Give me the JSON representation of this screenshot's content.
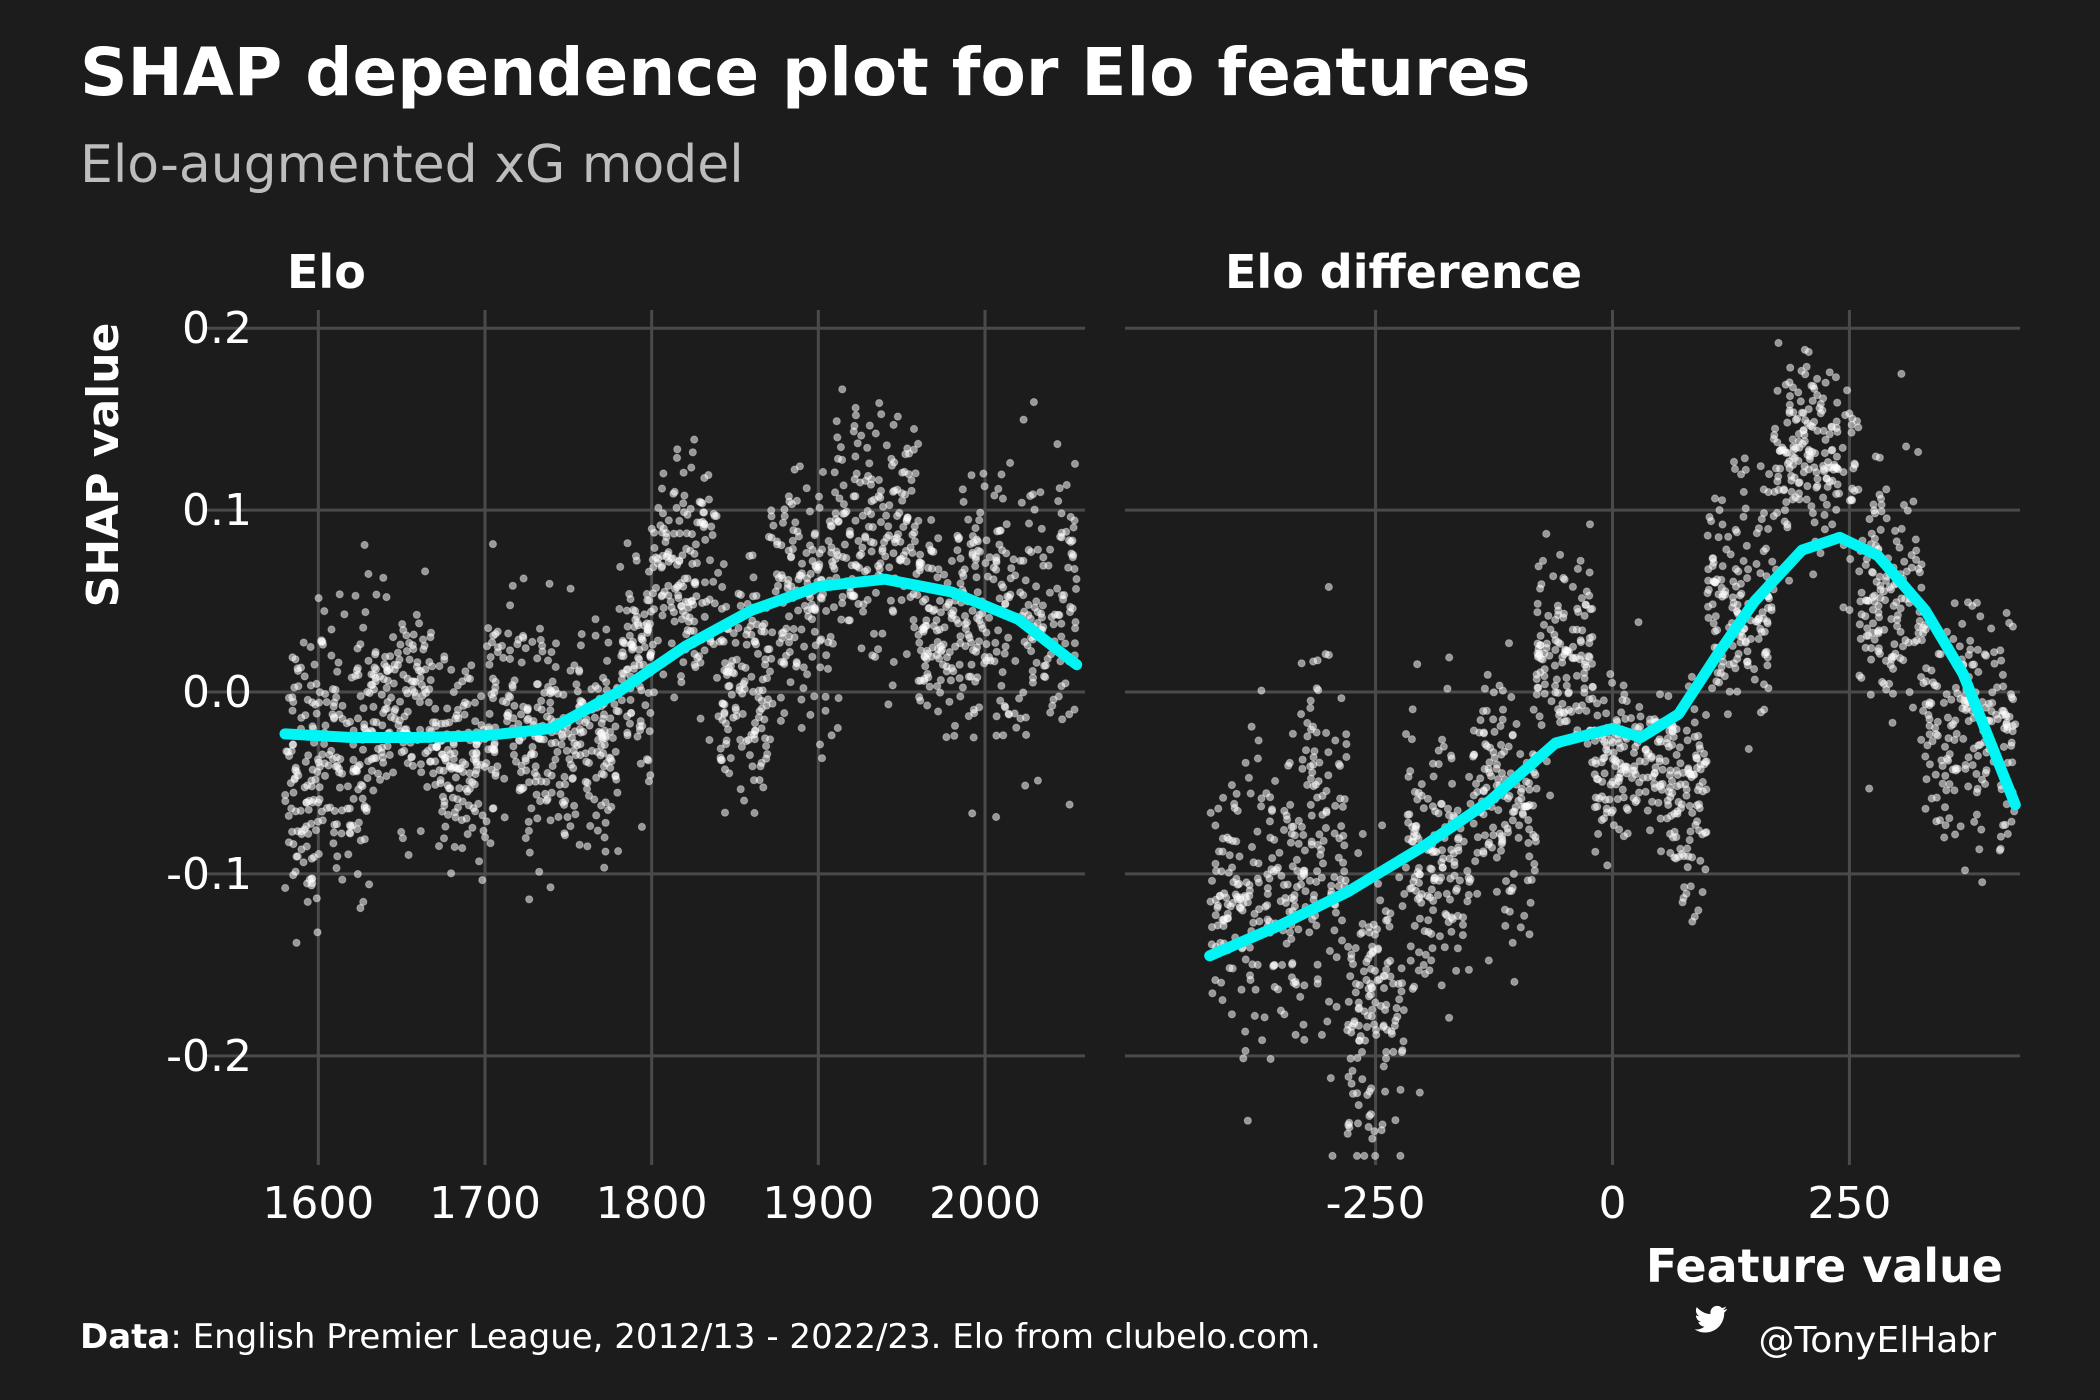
{
  "title": "SHAP dependence plot for Elo features",
  "subtitle": "Elo-augmented xG model",
  "ylabel": "SHAP value",
  "xlabel": "Feature value",
  "caption": {
    "bold": "Data",
    "text": ": English Premier League, 2012/13 - 2022/23. Elo from clubelo.com."
  },
  "credit": {
    "handle": "@TonyElHabr",
    "icon": "twitter-bird-icon"
  },
  "colors": {
    "background": "#1c1c1c",
    "grid": "#4a4a4a",
    "points": "#ffffff",
    "smooth_line": "#00f5f5",
    "text": "#ffffff",
    "subtitle": "#bdbdbd"
  },
  "chart_data": [
    {
      "type": "scatter",
      "panel_title": "Elo",
      "x_ticks": [
        "1600",
        "1700",
        "1800",
        "1900",
        "2000"
      ],
      "x_tick_values": [
        1600,
        1700,
        1800,
        1900,
        2000
      ],
      "y_ticks": [
        "0.2",
        "0.1",
        "0.0",
        "-0.1",
        "-0.2"
      ],
      "y_tick_values": [
        0.2,
        0.1,
        0.0,
        -0.1,
        -0.2
      ],
      "xlim": [
        1580,
        2060
      ],
      "ylim": [
        -0.26,
        0.21
      ],
      "smooth": {
        "x": [
          1580,
          1620,
          1660,
          1700,
          1740,
          1780,
          1820,
          1860,
          1900,
          1940,
          1980,
          2020,
          2055
        ],
        "y": [
          -0.023,
          -0.025,
          -0.025,
          -0.024,
          -0.02,
          0.0,
          0.025,
          0.045,
          0.058,
          0.062,
          0.055,
          0.04,
          0.015
        ]
      },
      "point_clusters": [
        {
          "x_min": 1580,
          "x_max": 1600,
          "y_center": -0.045,
          "y_spread": 0.07
        },
        {
          "x_min": 1600,
          "x_max": 1630,
          "y_center": -0.03,
          "y_spread": 0.07
        },
        {
          "x_min": 1630,
          "x_max": 1670,
          "y_center": -0.01,
          "y_spread": 0.05
        },
        {
          "x_min": 1670,
          "x_max": 1700,
          "y_center": -0.04,
          "y_spread": 0.045
        },
        {
          "x_min": 1700,
          "x_max": 1745,
          "y_center": -0.02,
          "y_spread": 0.06
        },
        {
          "x_min": 1745,
          "x_max": 1780,
          "y_center": -0.03,
          "y_spread": 0.05
        },
        {
          "x_min": 1780,
          "x_max": 1800,
          "y_center": 0.02,
          "y_spread": 0.06
        },
        {
          "x_min": 1800,
          "x_max": 1840,
          "y_center": 0.06,
          "y_spread": 0.06
        },
        {
          "x_min": 1840,
          "x_max": 1870,
          "y_center": 0.0,
          "y_spread": 0.06
        },
        {
          "x_min": 1870,
          "x_max": 1910,
          "y_center": 0.05,
          "y_spread": 0.06
        },
        {
          "x_min": 1910,
          "x_max": 1960,
          "y_center": 0.09,
          "y_spread": 0.06
        },
        {
          "x_min": 1960,
          "x_max": 1990,
          "y_center": 0.04,
          "y_spread": 0.05
        },
        {
          "x_min": 1990,
          "x_max": 2055,
          "y_center": 0.04,
          "y_spread": 0.08
        }
      ]
    },
    {
      "type": "scatter",
      "panel_title": "Elo difference",
      "x_ticks": [
        "-250",
        "0",
        "250"
      ],
      "x_tick_values": [
        -250,
        0,
        250
      ],
      "y_ticks": [
        "0.2",
        "0.1",
        "0.0",
        "-0.1",
        "-0.2"
      ],
      "y_tick_values": [
        0.2,
        0.1,
        0.0,
        -0.1,
        -0.2
      ],
      "xlim": [
        -430,
        430
      ],
      "ylim": [
        -0.26,
        0.21
      ],
      "smooth": {
        "x": [
          -425,
          -350,
          -280,
          -200,
          -130,
          -60,
          0,
          30,
          70,
          110,
          150,
          200,
          240,
          280,
          330,
          370,
          425
        ],
        "y": [
          -0.145,
          -0.128,
          -0.11,
          -0.085,
          -0.06,
          -0.028,
          -0.02,
          -0.025,
          -0.012,
          0.02,
          0.05,
          0.078,
          0.085,
          0.075,
          0.045,
          0.01,
          -0.062
        ]
      },
      "point_clusters": [
        {
          "x_min": -425,
          "x_max": -330,
          "y_center": -0.12,
          "y_spread": 0.07
        },
        {
          "x_min": -330,
          "x_max": -280,
          "y_center": -0.08,
          "y_spread": 0.1
        },
        {
          "x_min": -280,
          "x_max": -220,
          "y_center": -0.17,
          "y_spread": 0.07
        },
        {
          "x_min": -220,
          "x_max": -150,
          "y_center": -0.09,
          "y_spread": 0.07
        },
        {
          "x_min": -150,
          "x_max": -80,
          "y_center": -0.06,
          "y_spread": 0.06
        },
        {
          "x_min": -80,
          "x_max": -20,
          "y_center": 0.02,
          "y_spread": 0.05
        },
        {
          "x_min": -20,
          "x_max": 60,
          "y_center": -0.04,
          "y_spread": 0.04
        },
        {
          "x_min": 60,
          "x_max": 100,
          "y_center": -0.06,
          "y_spread": 0.05
        },
        {
          "x_min": 100,
          "x_max": 170,
          "y_center": 0.05,
          "y_spread": 0.06
        },
        {
          "x_min": 170,
          "x_max": 260,
          "y_center": 0.13,
          "y_spread": 0.05
        },
        {
          "x_min": 260,
          "x_max": 330,
          "y_center": 0.05,
          "y_spread": 0.06
        },
        {
          "x_min": 330,
          "x_max": 425,
          "y_center": -0.02,
          "y_spread": 0.06
        }
      ]
    }
  ]
}
